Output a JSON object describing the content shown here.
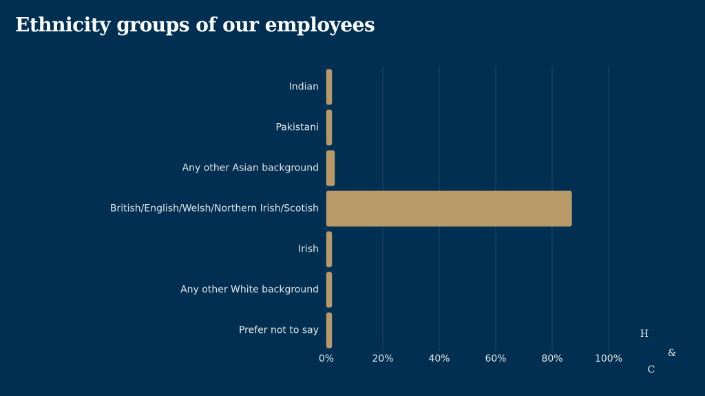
{
  "chart_data": {
    "type": "barh",
    "title": "Ethnicity groups of our employees",
    "categories": [
      "Indian",
      "Pakistani",
      "Any other Asian background",
      "British/English/Welsh/Northern Irish/Scotish",
      "Irish",
      "Any other White background",
      "Prefer not to say"
    ],
    "values": [
      2,
      2,
      3,
      87,
      2,
      2,
      2
    ],
    "color": "#b89a68",
    "xlim": [
      0,
      100
    ],
    "xticks": [
      {
        "value": 0,
        "label": "0%"
      },
      {
        "value": 20,
        "label": "20%"
      },
      {
        "value": 40,
        "label": "40%"
      },
      {
        "value": 60,
        "label": "60%"
      },
      {
        "value": 80,
        "label": "80%"
      },
      {
        "value": 100,
        "label": "100%"
      }
    ],
    "grid": true
  },
  "logo": [
    "H",
    "&",
    "C"
  ]
}
